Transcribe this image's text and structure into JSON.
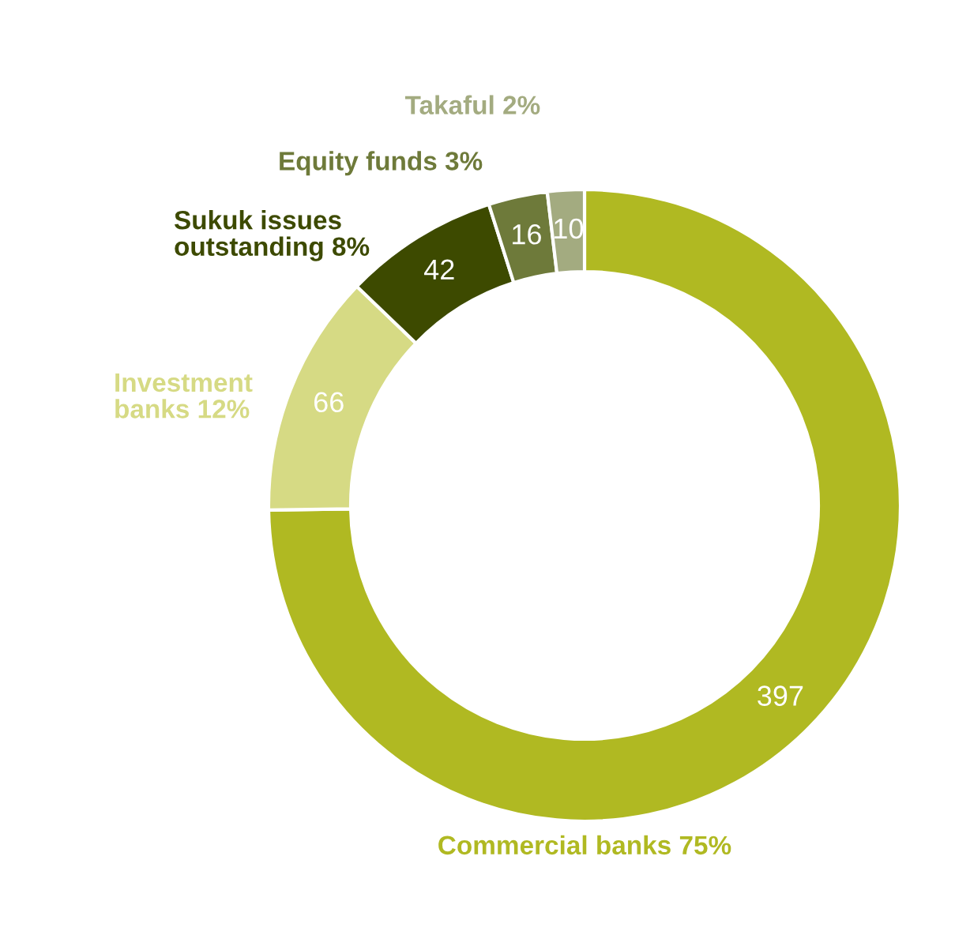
{
  "chart_data": {
    "type": "donut",
    "categories": [
      "Commercial banks 75%",
      "Investment\nbanks 12%",
      "Sukuk issues\noutstanding 8%",
      "Equity funds 3%",
      "Takaful 2%"
    ],
    "values": [
      397,
      66,
      42,
      16,
      10
    ],
    "colors": [
      "#b0b922",
      "#d6da84",
      "#3d4a00",
      "#6e7a3a",
      "#a3ab80"
    ],
    "data_labels": true,
    "legend": false
  }
}
